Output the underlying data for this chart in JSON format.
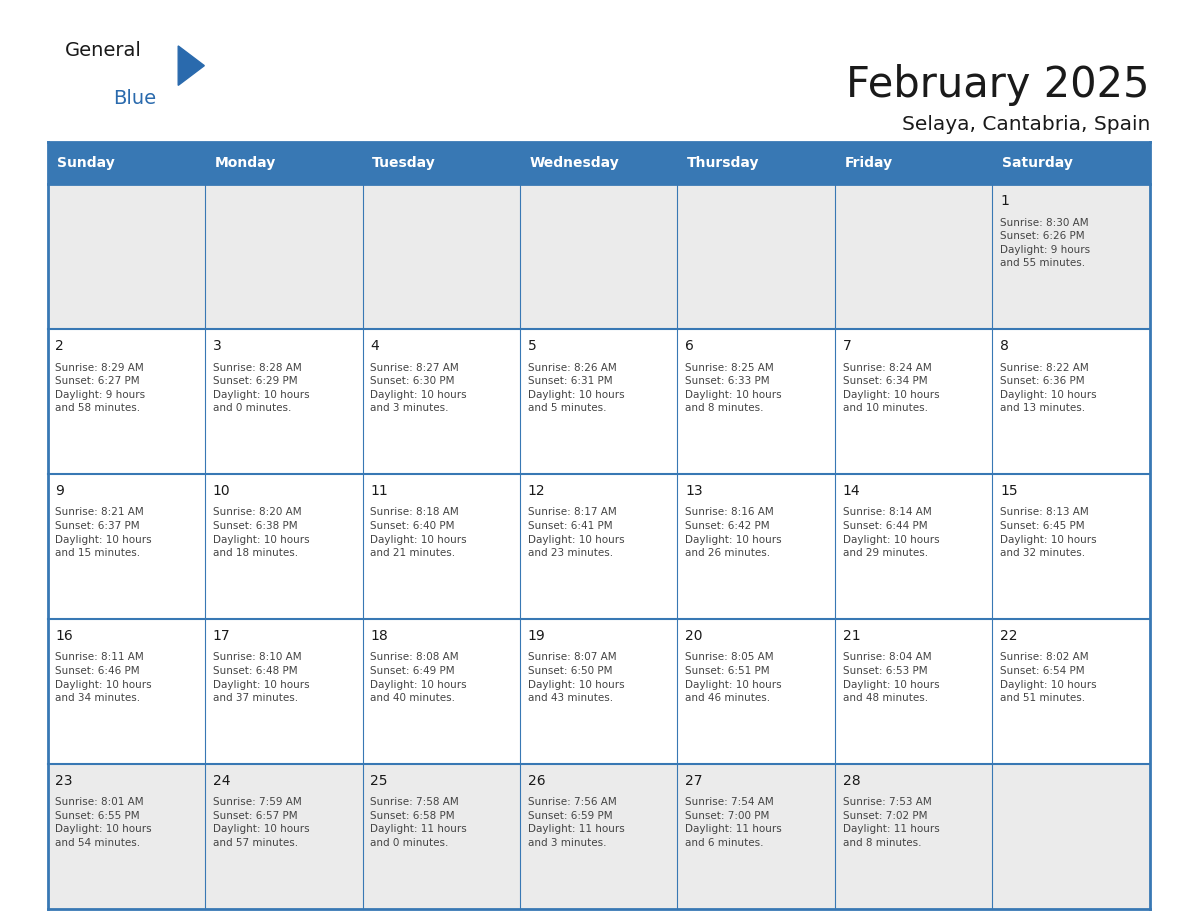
{
  "title": "February 2025",
  "subtitle": "Selaya, Cantabria, Spain",
  "header_color": "#3878b4",
  "header_text_color": "#ffffff",
  "cell_bg_week1": "#ebebeb",
  "cell_bg_week5": "#ebebeb",
  "cell_bg_other": "#ffffff",
  "day_headers": [
    "Sunday",
    "Monday",
    "Tuesday",
    "Wednesday",
    "Thursday",
    "Friday",
    "Saturday"
  ],
  "title_color": "#1a1a1a",
  "subtitle_color": "#1a1a1a",
  "day_number_color": "#1a1a1a",
  "cell_text_color": "#444444",
  "grid_color": "#3878b4",
  "logo_general_color": "#1a1a1a",
  "logo_blue_color": "#2a6aad",
  "weeks": [
    [
      {
        "day": null,
        "info": null
      },
      {
        "day": null,
        "info": null
      },
      {
        "day": null,
        "info": null
      },
      {
        "day": null,
        "info": null
      },
      {
        "day": null,
        "info": null
      },
      {
        "day": null,
        "info": null
      },
      {
        "day": 1,
        "info": "Sunrise: 8:30 AM\nSunset: 6:26 PM\nDaylight: 9 hours\nand 55 minutes."
      }
    ],
    [
      {
        "day": 2,
        "info": "Sunrise: 8:29 AM\nSunset: 6:27 PM\nDaylight: 9 hours\nand 58 minutes."
      },
      {
        "day": 3,
        "info": "Sunrise: 8:28 AM\nSunset: 6:29 PM\nDaylight: 10 hours\nand 0 minutes."
      },
      {
        "day": 4,
        "info": "Sunrise: 8:27 AM\nSunset: 6:30 PM\nDaylight: 10 hours\nand 3 minutes."
      },
      {
        "day": 5,
        "info": "Sunrise: 8:26 AM\nSunset: 6:31 PM\nDaylight: 10 hours\nand 5 minutes."
      },
      {
        "day": 6,
        "info": "Sunrise: 8:25 AM\nSunset: 6:33 PM\nDaylight: 10 hours\nand 8 minutes."
      },
      {
        "day": 7,
        "info": "Sunrise: 8:24 AM\nSunset: 6:34 PM\nDaylight: 10 hours\nand 10 minutes."
      },
      {
        "day": 8,
        "info": "Sunrise: 8:22 AM\nSunset: 6:36 PM\nDaylight: 10 hours\nand 13 minutes."
      }
    ],
    [
      {
        "day": 9,
        "info": "Sunrise: 8:21 AM\nSunset: 6:37 PM\nDaylight: 10 hours\nand 15 minutes."
      },
      {
        "day": 10,
        "info": "Sunrise: 8:20 AM\nSunset: 6:38 PM\nDaylight: 10 hours\nand 18 minutes."
      },
      {
        "day": 11,
        "info": "Sunrise: 8:18 AM\nSunset: 6:40 PM\nDaylight: 10 hours\nand 21 minutes."
      },
      {
        "day": 12,
        "info": "Sunrise: 8:17 AM\nSunset: 6:41 PM\nDaylight: 10 hours\nand 23 minutes."
      },
      {
        "day": 13,
        "info": "Sunrise: 8:16 AM\nSunset: 6:42 PM\nDaylight: 10 hours\nand 26 minutes."
      },
      {
        "day": 14,
        "info": "Sunrise: 8:14 AM\nSunset: 6:44 PM\nDaylight: 10 hours\nand 29 minutes."
      },
      {
        "day": 15,
        "info": "Sunrise: 8:13 AM\nSunset: 6:45 PM\nDaylight: 10 hours\nand 32 minutes."
      }
    ],
    [
      {
        "day": 16,
        "info": "Sunrise: 8:11 AM\nSunset: 6:46 PM\nDaylight: 10 hours\nand 34 minutes."
      },
      {
        "day": 17,
        "info": "Sunrise: 8:10 AM\nSunset: 6:48 PM\nDaylight: 10 hours\nand 37 minutes."
      },
      {
        "day": 18,
        "info": "Sunrise: 8:08 AM\nSunset: 6:49 PM\nDaylight: 10 hours\nand 40 minutes."
      },
      {
        "day": 19,
        "info": "Sunrise: 8:07 AM\nSunset: 6:50 PM\nDaylight: 10 hours\nand 43 minutes."
      },
      {
        "day": 20,
        "info": "Sunrise: 8:05 AM\nSunset: 6:51 PM\nDaylight: 10 hours\nand 46 minutes."
      },
      {
        "day": 21,
        "info": "Sunrise: 8:04 AM\nSunset: 6:53 PM\nDaylight: 10 hours\nand 48 minutes."
      },
      {
        "day": 22,
        "info": "Sunrise: 8:02 AM\nSunset: 6:54 PM\nDaylight: 10 hours\nand 51 minutes."
      }
    ],
    [
      {
        "day": 23,
        "info": "Sunrise: 8:01 AM\nSunset: 6:55 PM\nDaylight: 10 hours\nand 54 minutes."
      },
      {
        "day": 24,
        "info": "Sunrise: 7:59 AM\nSunset: 6:57 PM\nDaylight: 10 hours\nand 57 minutes."
      },
      {
        "day": 25,
        "info": "Sunrise: 7:58 AM\nSunset: 6:58 PM\nDaylight: 11 hours\nand 0 minutes."
      },
      {
        "day": 26,
        "info": "Sunrise: 7:56 AM\nSunset: 6:59 PM\nDaylight: 11 hours\nand 3 minutes."
      },
      {
        "day": 27,
        "info": "Sunrise: 7:54 AM\nSunset: 7:00 PM\nDaylight: 11 hours\nand 6 minutes."
      },
      {
        "day": 28,
        "info": "Sunrise: 7:53 AM\nSunset: 7:02 PM\nDaylight: 11 hours\nand 8 minutes."
      },
      {
        "day": null,
        "info": null
      }
    ]
  ],
  "figwidth": 11.88,
  "figheight": 9.18,
  "dpi": 100
}
